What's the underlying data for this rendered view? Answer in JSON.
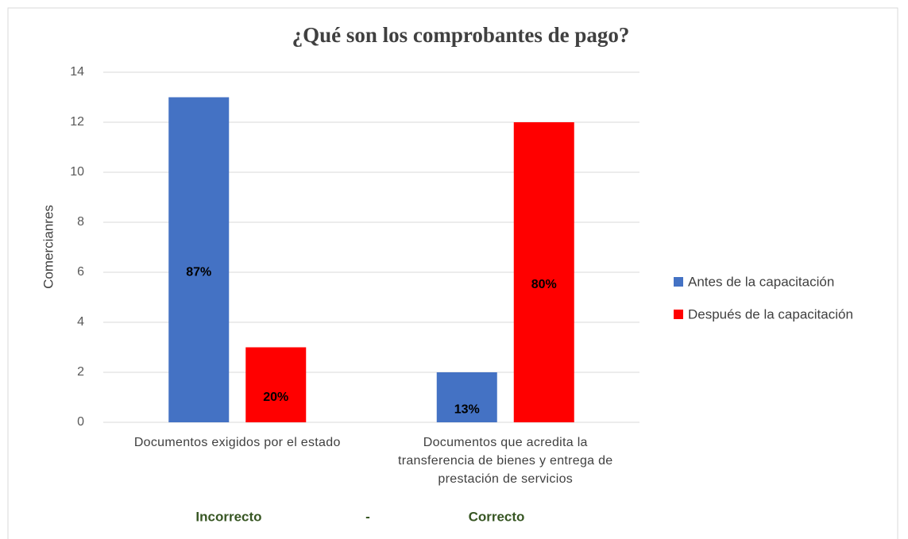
{
  "chart_data": {
    "type": "bar",
    "title": "¿Qué son los comprobantes de pago?",
    "y_label": "Comercianres",
    "categories": [
      "Documentos exigidos por el estado",
      "Documentos que acredita la transferencia de bienes y entrega de prestación de servicios"
    ],
    "series": [
      {
        "name": "Antes de la capacitación",
        "color": "#4472c4",
        "values": [
          13,
          2
        ],
        "value_labels": [
          "87%",
          "13%"
        ]
      },
      {
        "name": "Después de la capacitación",
        "color": "#ff0000",
        "values": [
          3,
          12
        ],
        "value_labels": [
          "20%",
          "80%"
        ]
      }
    ],
    "ylim": [
      0,
      14
    ],
    "yticks": [
      0,
      2,
      4,
      6,
      8,
      10,
      12,
      14
    ],
    "grid": true,
    "legend": "right",
    "annotations": [
      "Incorrecto",
      "-",
      "Correcto"
    ]
  }
}
